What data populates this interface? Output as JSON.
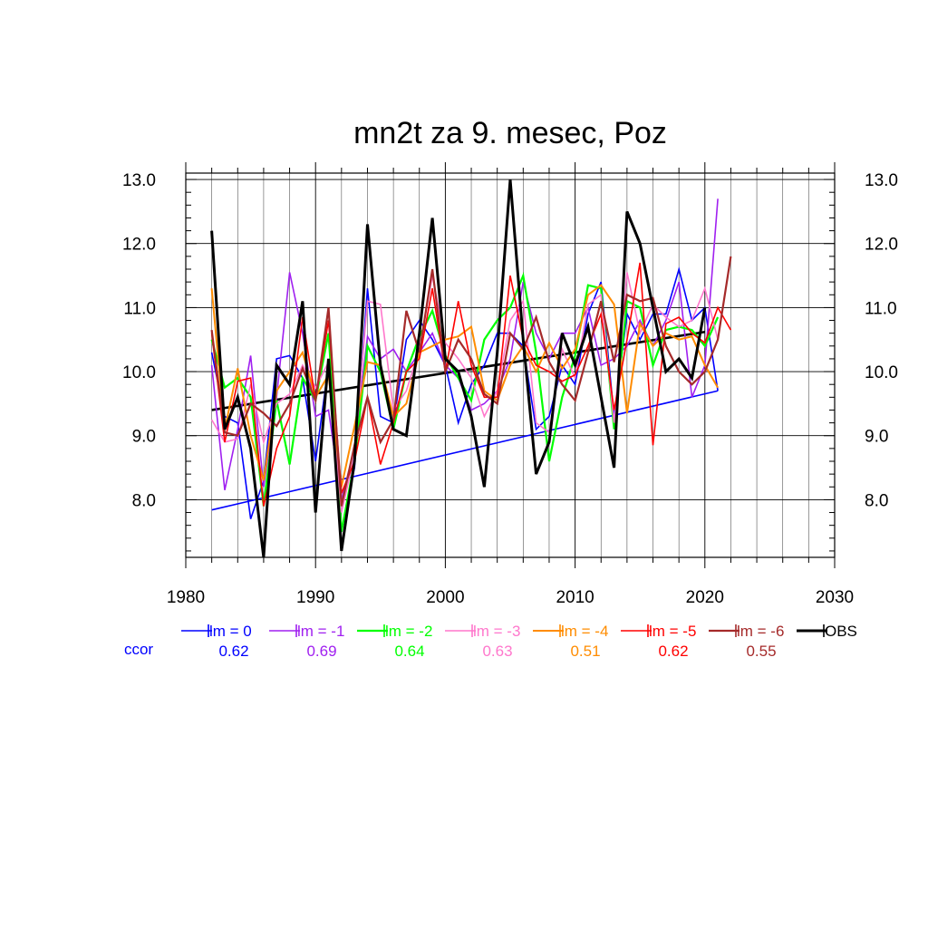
{
  "chart_data": {
    "type": "line",
    "title": "mn2t za 9. mesec, Poz",
    "xlabel": "",
    "ylabel": "",
    "xlim": [
      1980,
      2030
    ],
    "ylim": [
      7.1,
      13.1
    ],
    "x_ticks": [
      "1980",
      "1990",
      "2000",
      "2010",
      "2020",
      "2030"
    ],
    "x_tick_values": [
      1980,
      1990,
      2000,
      2010,
      2020,
      2030
    ],
    "y_ticks": [
      "8.0",
      "9.0",
      "10.0",
      "11.0",
      "12.0",
      "13.0"
    ],
    "y_tick_values": [
      8,
      9,
      10,
      11,
      12,
      13
    ],
    "grid": true,
    "legend_position": "below-plot",
    "ccor_label": "ccor",
    "ccor_color": "#0000ff",
    "series": [
      {
        "name": "lm = 0",
        "ccor": "0.62",
        "color": "#0000ff",
        "linewidth": 1.6,
        "x": [
          1982,
          1983,
          1984,
          1985,
          1986,
          1987,
          1988,
          1989,
          1990,
          1991,
          1992,
          1993,
          1994,
          1995,
          1996,
          1997,
          1998,
          1999,
          2000,
          2001,
          2002,
          2003,
          2004,
          2005,
          2006,
          2007,
          2008,
          2009,
          2010,
          2011,
          2012,
          2013,
          2014,
          2015,
          2016,
          2017,
          2018,
          2019,
          2020,
          2021
        ],
        "y": [
          10.3,
          9.3,
          9.2,
          7.7,
          8.3,
          10.2,
          10.25,
          9.9,
          8.6,
          10.1,
          7.5,
          8.5,
          11.3,
          9.3,
          9.2,
          10.5,
          10.8,
          10.5,
          10.1,
          9.2,
          9.8,
          10.1,
          10.6,
          10.6,
          10.4,
          9.1,
          9.3,
          10.1,
          9.8,
          10.9,
          11.4,
          9.3,
          10.9,
          10.5,
          10.9,
          10.9,
          11.6,
          10.8,
          11.0,
          9.7
        ]
      },
      {
        "name": "lm = -1",
        "ccor": "0.69",
        "color": "#a020f0",
        "linewidth": 1.6,
        "x": [
          1982,
          1983,
          1984,
          1985,
          1986,
          1987,
          1988,
          1989,
          1990,
          1991,
          1992,
          1993,
          1994,
          1995,
          1996,
          1997,
          1998,
          1999,
          2000,
          2001,
          2002,
          2003,
          2004,
          2005,
          2006,
          2007,
          2008,
          2009,
          2010,
          2011,
          2012,
          2013,
          2014,
          2015,
          2016,
          2017,
          2018,
          2019,
          2020,
          2021
        ],
        "y": [
          10.1,
          8.15,
          9.1,
          10.25,
          8.2,
          9.6,
          11.55,
          10.6,
          9.3,
          9.4,
          8.0,
          8.8,
          10.55,
          10.2,
          10.35,
          10.0,
          10.3,
          10.6,
          10.1,
          9.9,
          9.4,
          9.5,
          9.7,
          10.2,
          11.4,
          10.6,
          10.2,
          10.6,
          10.6,
          11.0,
          10.1,
          10.2,
          10.4,
          10.8,
          10.4,
          10.8,
          11.4,
          9.6,
          10.1,
          12.7
        ]
      },
      {
        "name": "lm = -2",
        "ccor": "0.64",
        "color": "#00ff00",
        "linewidth": 2.2,
        "x": [
          1982,
          1983,
          1984,
          1985,
          1986,
          1987,
          1988,
          1989,
          1990,
          1991,
          1992,
          1993,
          1994,
          1995,
          1996,
          1997,
          1998,
          1999,
          2000,
          2001,
          2002,
          2003,
          2004,
          2005,
          2006,
          2007,
          2008,
          2009,
          2010,
          2011,
          2012,
          2013,
          2014,
          2015,
          2016,
          2017,
          2018,
          2019,
          2020,
          2021
        ],
        "y": [
          10.5,
          9.75,
          9.9,
          9.6,
          7.9,
          9.55,
          8.55,
          9.9,
          9.55,
          10.6,
          7.5,
          8.6,
          10.4,
          10.0,
          9.1,
          10.0,
          10.55,
          10.95,
          10.25,
          9.9,
          9.55,
          10.5,
          10.8,
          11.0,
          11.5,
          10.3,
          8.6,
          9.6,
          10.25,
          11.35,
          11.3,
          9.1,
          11.1,
          11.0,
          10.1,
          10.65,
          10.7,
          10.65,
          10.4,
          10.85
        ]
      },
      {
        "name": "lm = -3",
        "ccor": "0.63",
        "color": "#ff77cc",
        "linewidth": 1.6,
        "x": [
          1982,
          1983,
          1984,
          1985,
          1986,
          1987,
          1988,
          1989,
          1990,
          1991,
          1992,
          1993,
          1994,
          1995,
          1996,
          1997,
          1998,
          1999,
          2000,
          2001,
          2002,
          2003,
          2004,
          2005,
          2006,
          2007,
          2008,
          2009,
          2010,
          2011,
          2012,
          2013,
          2014,
          2015,
          2016,
          2017,
          2018,
          2019,
          2020,
          2021
        ],
        "y": [
          9.25,
          8.9,
          8.95,
          9.8,
          8.9,
          9.5,
          9.65,
          10.1,
          9.75,
          10.15,
          7.8,
          8.7,
          11.1,
          11.05,
          9.4,
          9.7,
          10.35,
          11.5,
          10.45,
          10.2,
          9.9,
          9.3,
          9.7,
          10.8,
          11.1,
          9.2,
          9.05,
          10.35,
          9.9,
          11.05,
          11.2,
          9.2,
          11.55,
          10.6,
          11.05,
          10.85,
          10.7,
          10.8,
          11.3,
          10.5
        ]
      },
      {
        "name": "lm = -4",
        "ccor": "0.51",
        "color": "#ff8c00",
        "linewidth": 2.0,
        "x": [
          1982,
          1983,
          1984,
          1985,
          1986,
          1987,
          1988,
          1989,
          1990,
          1991,
          1992,
          1993,
          1994,
          1995,
          1996,
          1997,
          1998,
          1999,
          2000,
          2001,
          2002,
          2003,
          2004,
          2005,
          2006,
          2007,
          2008,
          2009,
          2010,
          2011,
          2012,
          2013,
          2014,
          2015,
          2016,
          2017,
          2018,
          2019,
          2020,
          2021
        ],
        "y": [
          11.3,
          9.1,
          10.05,
          9.0,
          8.3,
          9.7,
          10.0,
          10.3,
          9.6,
          9.95,
          8.2,
          9.15,
          10.15,
          10.1,
          9.3,
          9.5,
          10.3,
          10.4,
          10.5,
          10.55,
          10.7,
          9.7,
          9.55,
          10.1,
          10.4,
          10.0,
          10.45,
          10.05,
          10.35,
          11.2,
          11.35,
          11.05,
          9.35,
          10.75,
          10.4,
          10.6,
          10.5,
          10.55,
          10.1,
          9.75
        ]
      },
      {
        "name": "lm = -5",
        "ccor": "0.62",
        "color": "#ff0000",
        "linewidth": 1.6,
        "x": [
          1982,
          1983,
          1984,
          1985,
          1986,
          1987,
          1988,
          1989,
          1990,
          1991,
          1992,
          1993,
          1994,
          1995,
          1996,
          1997,
          1998,
          1999,
          2000,
          2001,
          2002,
          2003,
          2004,
          2005,
          2006,
          2007,
          2008,
          2009,
          2010,
          2011,
          2012,
          2013,
          2014,
          2015,
          2016,
          2017,
          2018,
          2019,
          2020,
          2021,
          2022
        ],
        "y": [
          10.6,
          8.9,
          9.85,
          9.9,
          7.9,
          8.8,
          9.3,
          10.85,
          9.55,
          10.8,
          8.1,
          8.6,
          9.6,
          8.55,
          9.2,
          10.0,
          10.2,
          11.3,
          10.0,
          11.1,
          10.1,
          9.6,
          9.6,
          11.5,
          10.5,
          10.1,
          10.0,
          9.85,
          9.95,
          10.4,
          10.9,
          9.4,
          10.5,
          11.7,
          8.85,
          10.75,
          10.85,
          10.6,
          10.45,
          11.0,
          10.65
        ]
      },
      {
        "name": "lm = -6",
        "ccor": "0.55",
        "color": "#a52a2a",
        "linewidth": 2.2,
        "x": [
          1982,
          1983,
          1984,
          1985,
          1986,
          1987,
          1988,
          1989,
          1990,
          1991,
          1992,
          1993,
          1994,
          1995,
          1996,
          1997,
          1998,
          1999,
          2000,
          2001,
          2002,
          2003,
          2004,
          2005,
          2006,
          2007,
          2008,
          2009,
          2010,
          2011,
          2012,
          2013,
          2014,
          2015,
          2016,
          2017,
          2018,
          2019,
          2020,
          2021,
          2022
        ],
        "y": [
          10.65,
          9.05,
          9.0,
          9.5,
          9.35,
          9.15,
          9.5,
          10.05,
          9.55,
          11.0,
          7.9,
          8.85,
          9.6,
          8.9,
          9.25,
          10.95,
          10.3,
          11.6,
          10.0,
          10.5,
          10.2,
          9.65,
          9.5,
          10.6,
          10.35,
          10.85,
          10.15,
          9.8,
          9.55,
          10.3,
          11.1,
          10.15,
          11.2,
          11.1,
          11.15,
          10.4,
          10.0,
          9.8,
          10.0,
          10.5,
          11.8
        ]
      },
      {
        "name": "OBS",
        "ccor": "",
        "color": "#000000",
        "linewidth": 3.0,
        "x": [
          1982,
          1983,
          1984,
          1985,
          1986,
          1987,
          1988,
          1989,
          1990,
          1991,
          1992,
          1993,
          1994,
          1995,
          1996,
          1997,
          1998,
          1999,
          2000,
          2001,
          2002,
          2003,
          2004,
          2005,
          2006,
          2007,
          2008,
          2009,
          2010,
          2011,
          2012,
          2013,
          2014,
          2015,
          2016,
          2017,
          2018,
          2019,
          2020
        ],
        "y": [
          12.2,
          9.1,
          9.6,
          8.8,
          7.1,
          10.1,
          9.8,
          11.1,
          7.8,
          10.2,
          7.2,
          8.6,
          12.3,
          10.1,
          9.1,
          9.0,
          10.6,
          12.4,
          10.2,
          10.0,
          9.3,
          8.2,
          10.3,
          13.0,
          10.5,
          8.4,
          8.9,
          10.6,
          10.1,
          10.7,
          9.6,
          8.5,
          12.5,
          12.0,
          11.0,
          10.0,
          10.2,
          9.9,
          11.0
        ]
      }
    ],
    "trend_lines": [
      {
        "color": "#0000ff",
        "linewidth": 1.6,
        "x": [
          1982,
          2021
        ],
        "y": [
          7.84,
          9.7
        ]
      },
      {
        "color": "#000000",
        "linewidth": 2.6,
        "x": [
          1982,
          2020
        ],
        "y": [
          9.4,
          10.62
        ]
      }
    ]
  }
}
